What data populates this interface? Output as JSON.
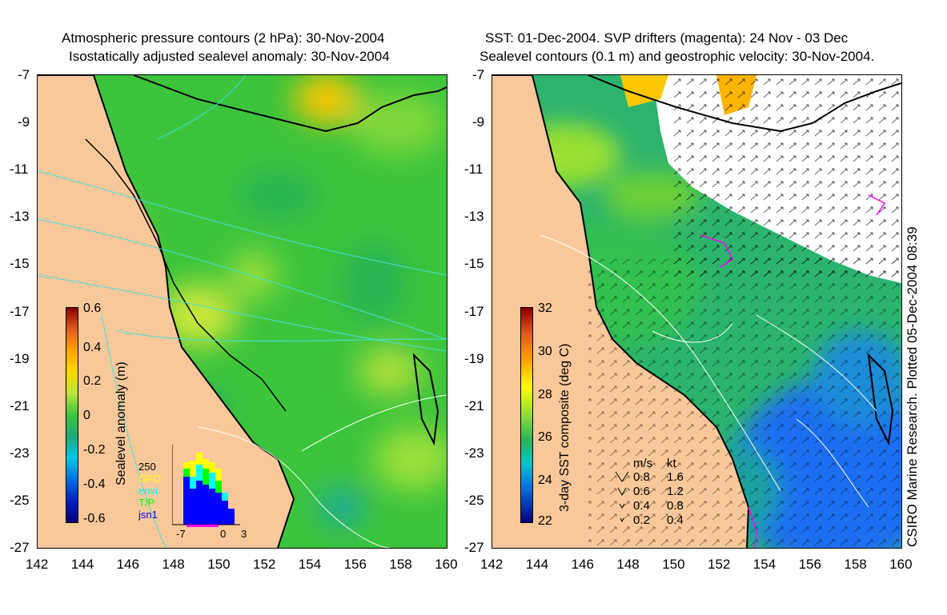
{
  "left_panel": {
    "title_line1": "Atmospheric pressure contours (2 hPa): 30-Nov-2004",
    "title_line2": "Isostatically adjusted sealevel anomaly: 30-Nov-2004",
    "colorbar": {
      "label": "Sealevel anomaly (m)",
      "ticks": [
        "0.6",
        "0.4",
        "0.2",
        "0",
        "-0.2",
        "-0.4",
        "-0.6"
      ]
    },
    "inset": {
      "count_label": "250",
      "legend": [
        {
          "name": "GFO",
          "color": "#ffff00"
        },
        {
          "name": "envi",
          "color": "#00ffff"
        },
        {
          "name": "T/P",
          "color": "#00ff00"
        },
        {
          "name": "jsn1",
          "color": "#0000ff"
        }
      ],
      "x_ticks": [
        "-7",
        "0",
        "3"
      ]
    }
  },
  "right_panel": {
    "title_line1": "SST: 01-Dec-2004. SVP drifters (magenta): 24 Nov - 03 Dec",
    "title_line2": "Sealevel contours (0.1 m) and geostrophic velocity: 30-Nov-2004.",
    "colorbar": {
      "label": "3-day SST composite (deg C)",
      "ticks": [
        "32",
        "30",
        "28",
        "26",
        "24",
        "22"
      ]
    },
    "velocity_legend": {
      "header_ms": "m/s",
      "header_kt": "kt",
      "rows": [
        {
          "ms": "0.8",
          "kt": "1.6"
        },
        {
          "ms": "0.6",
          "kt": "1.2"
        },
        {
          "ms": "0.4",
          "kt": "0.8"
        },
        {
          "ms": "0.2",
          "kt": "0.4"
        }
      ]
    },
    "side_label": "CSIRO Marine Research. Plotted 05-Dec-2004 08:39"
  },
  "axes": {
    "x_ticks": [
      "142",
      "144",
      "146",
      "148",
      "150",
      "152",
      "154",
      "156",
      "158",
      "160"
    ],
    "y_ticks": [
      "-7",
      "-9",
      "-11",
      "-13",
      "-15",
      "-17",
      "-19",
      "-21",
      "-23",
      "-25",
      "-27"
    ]
  },
  "colors": {
    "land": "#f9c89a",
    "coast": "#000000",
    "sealevel_base": "#38c838",
    "missing": "#ffffff"
  }
}
